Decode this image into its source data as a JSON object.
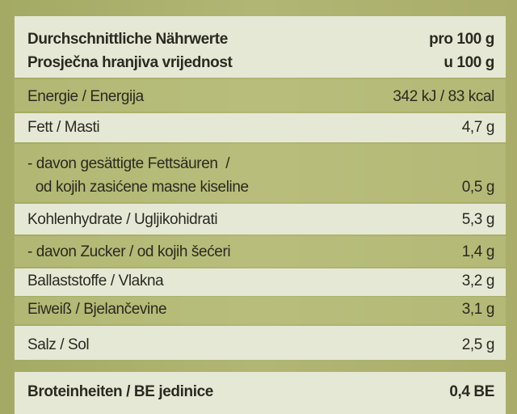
{
  "header": {
    "title_lines": [
      "Durchschnittliche Nährwerte",
      "Prosječna hranjiva vrijednost"
    ],
    "column_lines": [
      "pro 100 g",
      "u 100 g"
    ]
  },
  "rows": [
    {
      "label": [
        "Energie / Energija"
      ],
      "value": "342 kJ / 83 kcal"
    },
    {
      "label": [
        "Fett / Masti"
      ],
      "value": "4,7 g"
    },
    {
      "label": [
        "- davon gesättigte Fettsäuren  /",
        "  od kojih zasićene masne kiseline"
      ],
      "value": "0,5 g"
    },
    {
      "label": [
        "Kohlenhydrate / Ugljikohidrati"
      ],
      "value": "5,3 g"
    },
    {
      "label": [
        "- davon Zucker / od kojih šećeri"
      ],
      "value": "1,4 g"
    },
    {
      "label": [
        "Ballaststoffe / Vlakna"
      ],
      "value": "3,2 g"
    },
    {
      "label": [
        "Eiweiß / Bjelančevine"
      ],
      "value": "3,1 g"
    },
    {
      "label": [
        "Salz / Sol"
      ],
      "value": "2,5 g"
    }
  ],
  "footer": {
    "label": [
      "Broteinheiten / BE jedinice"
    ],
    "value": "0,4 BE"
  }
}
